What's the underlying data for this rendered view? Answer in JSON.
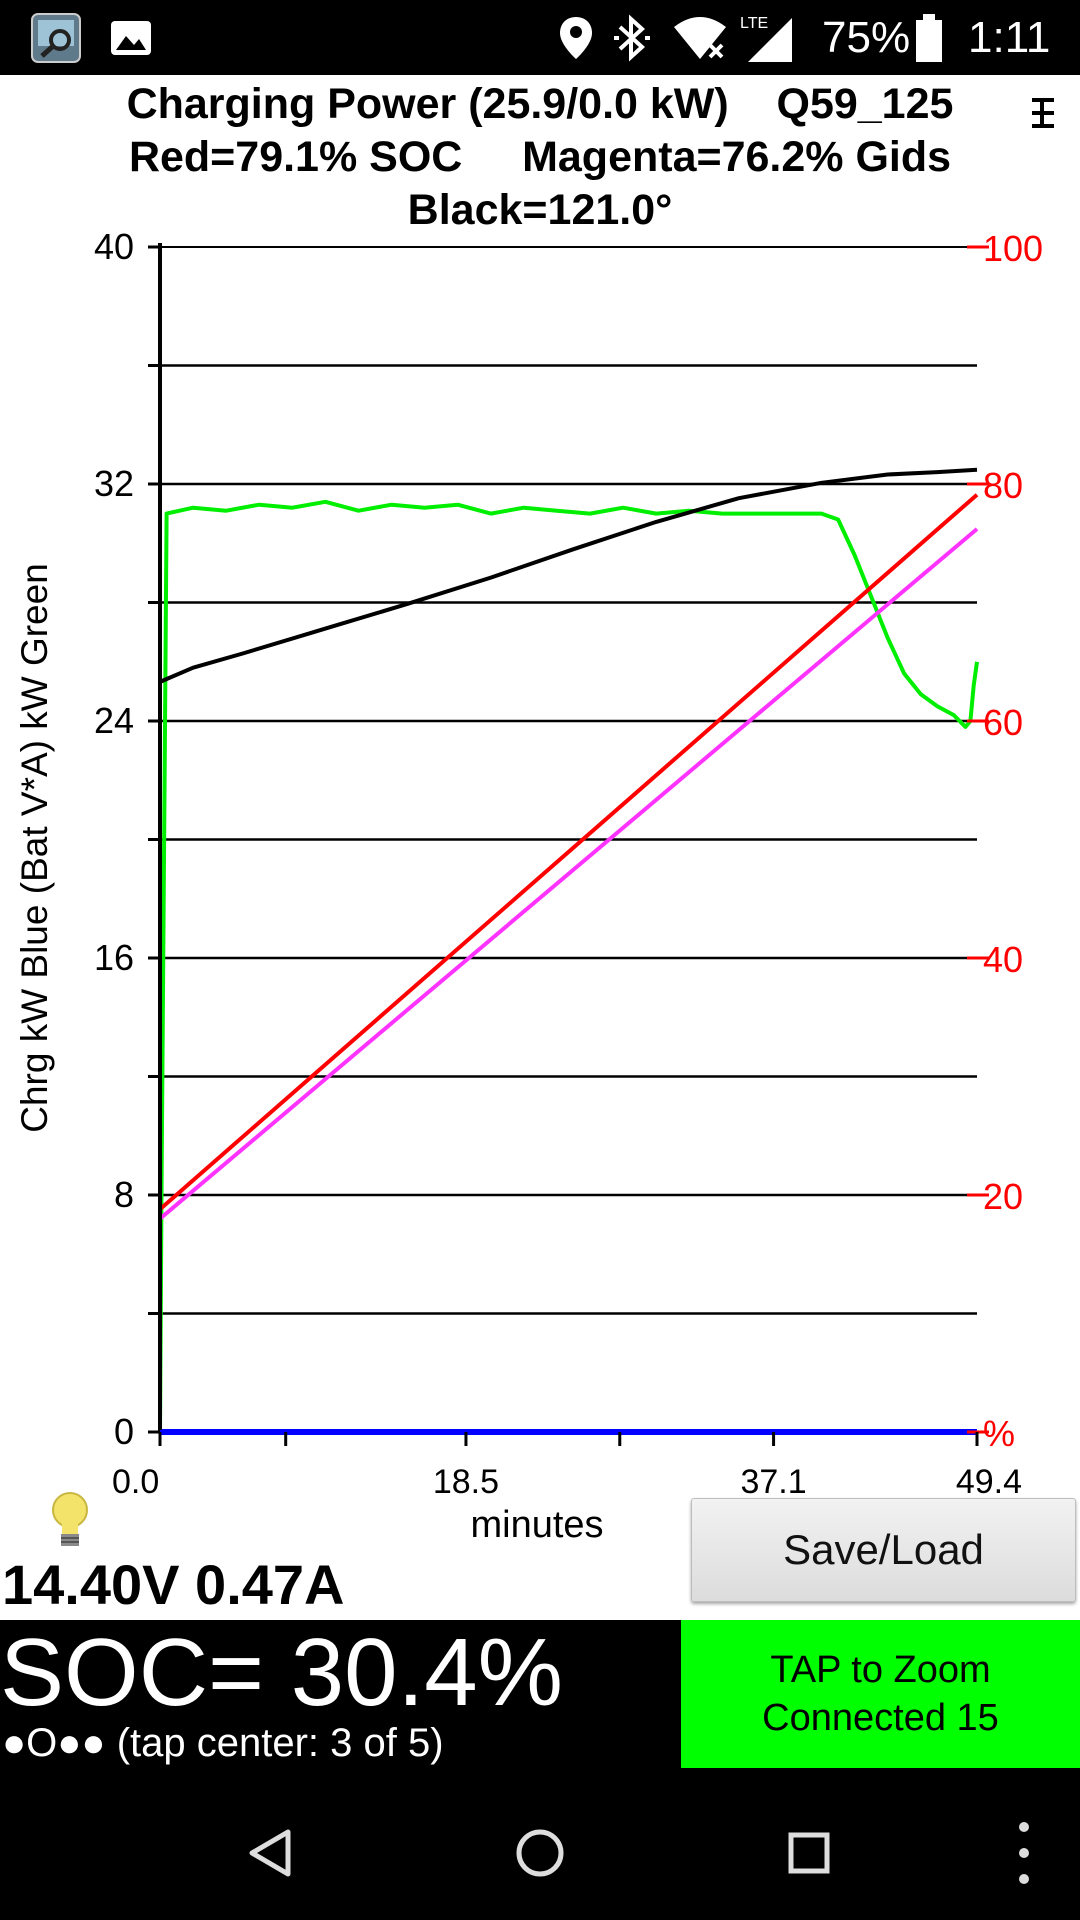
{
  "status_bar": {
    "battery_percent": "75%",
    "time": "1:11",
    "network_label": "LTE",
    "icons": [
      "app-icon",
      "image-icon",
      "location-icon",
      "bluetooth-icon",
      "wifi-icon",
      "signal-icon",
      "battery-icon"
    ]
  },
  "header": {
    "line1": "Charging Power (25.9/0.0 kW)    Q59_125",
    "line2": "Red=79.1% SOC     Magenta=76.2% Gids",
    "line3": "Black=121.0°"
  },
  "chart_data": {
    "type": "line",
    "x": {
      "label": "minutes",
      "range": [
        0,
        49.4
      ],
      "ticks": [
        "0.0",
        "18.5",
        "37.1",
        "49.4"
      ]
    },
    "y_left": {
      "label": "Chrg kW Blue  (Bat V*A) kW Green",
      "range": [
        0,
        40
      ],
      "ticks": [
        "0",
        "8",
        "16",
        "24",
        "32",
        "40"
      ]
    },
    "y_right": {
      "range": [
        0,
        100
      ],
      "ticks": [
        "%",
        "20",
        "40",
        "60",
        "80",
        "100"
      ]
    },
    "grid": true,
    "series": [
      {
        "color": "#00ee00",
        "axis": "left",
        "x": [
          0,
          0.1,
          0.4,
          2,
          4,
          6,
          8,
          10,
          12,
          14,
          16,
          18,
          20,
          22,
          24,
          26,
          28,
          30,
          32,
          34,
          36,
          38,
          40,
          41,
          42,
          43,
          44,
          45,
          46,
          47,
          48,
          48.7,
          49,
          49.2,
          49.4
        ],
        "y": [
          0,
          9,
          31,
          31.2,
          31.1,
          31.3,
          31.2,
          31.4,
          31.1,
          31.3,
          31.2,
          31.3,
          31.0,
          31.2,
          31.1,
          31.0,
          31.2,
          31.0,
          31.1,
          31.0,
          31.0,
          31.0,
          31.0,
          30.8,
          29.6,
          28.2,
          26.8,
          25.6,
          24.9,
          24.5,
          24.2,
          23.8,
          24.0,
          25.2,
          26.0
        ]
      },
      {
        "color": "#000000",
        "axis": "right",
        "x": [
          0,
          2,
          5,
          10,
          15,
          20,
          25,
          30,
          35,
          40,
          44,
          47,
          49.4
        ],
        "y": [
          63.3,
          64.5,
          65.7,
          67.8,
          69.9,
          72.1,
          74.5,
          76.8,
          78.8,
          80.1,
          80.8,
          81.0,
          81.2
        ]
      },
      {
        "color": "#ff0000",
        "axis": "right",
        "x": [
          0,
          49.4
        ],
        "y": [
          18.8,
          79.1
        ]
      },
      {
        "color": "#ff33ff",
        "axis": "right",
        "x": [
          0,
          49.4
        ],
        "y": [
          18.0,
          76.2
        ]
      },
      {
        "color": "#0000ff",
        "axis": "left",
        "x": [
          0,
          49.4
        ],
        "y": [
          0,
          0
        ]
      }
    ]
  },
  "readout": {
    "volt_amp": "14.40V 0.47A"
  },
  "buttons": {
    "save_load": "Save/Load"
  },
  "soc": {
    "text": "SOC= 30.4%",
    "page_hint": "●O●● (tap center: 3 of 5)"
  },
  "zoom_box": {
    "line1": "TAP to Zoom",
    "line2": "Connected 15"
  },
  "colors": {
    "status_bar_bg": "#000000",
    "zoom_box_bg": "#00ff00",
    "right_axis_labels": "#ff0000"
  },
  "nav": {
    "icons": [
      "back-icon",
      "home-icon",
      "recents-icon",
      "overflow-menu-icon"
    ]
  }
}
